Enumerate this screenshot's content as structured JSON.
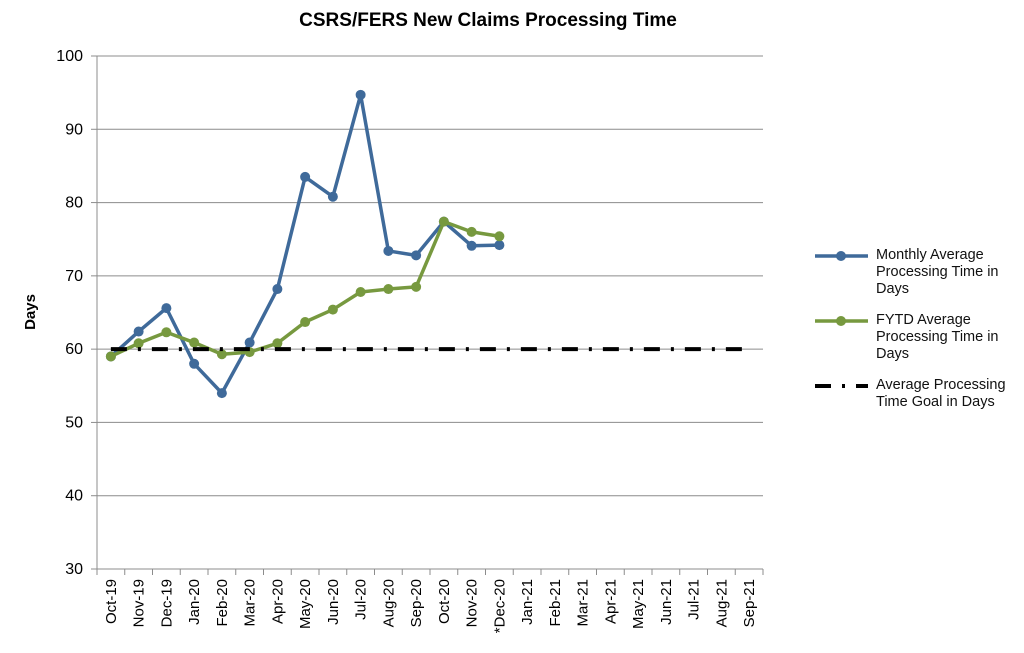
{
  "chart_data": {
    "type": "line",
    "title": "CSRS/FERS New Claims Processing Time",
    "y_label": "Days",
    "categories": [
      "Oct-19",
      "Nov-19",
      "Dec-19",
      "Jan-20",
      "Feb-20",
      "Mar-20",
      "Apr-20",
      "May-20",
      "Jun-20",
      "Jul-20",
      "Aug-20",
      "Sep-20",
      "Oct-20",
      "Nov-20",
      "*Dec-20",
      "Jan-21",
      "Feb-21",
      "Mar-21",
      "Apr-21",
      "May-21",
      "Jun-21",
      "Jul-21",
      "Aug-21",
      "Sep-21"
    ],
    "series": [
      {
        "name": "Monthly Average Processing Time in Days",
        "color": "#3f6a9a",
        "style": "solid-marker",
        "values": [
          59,
          62.4,
          65.6,
          58,
          54,
          60.9,
          68.2,
          83.5,
          80.8,
          94.7,
          73.4,
          72.8,
          77.4,
          74.1,
          74.2,
          null,
          null,
          null,
          null,
          null,
          null,
          null,
          null,
          null
        ]
      },
      {
        "name": "FYTD Average Processing Time in Days",
        "color": "#77993f",
        "style": "solid-marker",
        "values": [
          59,
          60.8,
          62.3,
          60.9,
          59.3,
          59.6,
          60.8,
          63.7,
          65.4,
          67.8,
          68.2,
          68.5,
          77.4,
          76,
          75.4,
          null,
          null,
          null,
          null,
          null,
          null,
          null,
          null,
          null
        ]
      },
      {
        "name": "Average Processing Time Goal in Days",
        "color": "#000000",
        "style": "dash-dot",
        "values": [
          60,
          60,
          60,
          60,
          60,
          60,
          60,
          60,
          60,
          60,
          60,
          60,
          60,
          60,
          60,
          60,
          60,
          60,
          60,
          60,
          60,
          60,
          60,
          60
        ]
      }
    ],
    "ylim": [
      30,
      100
    ],
    "yticks": [
      30,
      40,
      50,
      60,
      70,
      80,
      90,
      100
    ],
    "grid": true,
    "legend": "right"
  }
}
